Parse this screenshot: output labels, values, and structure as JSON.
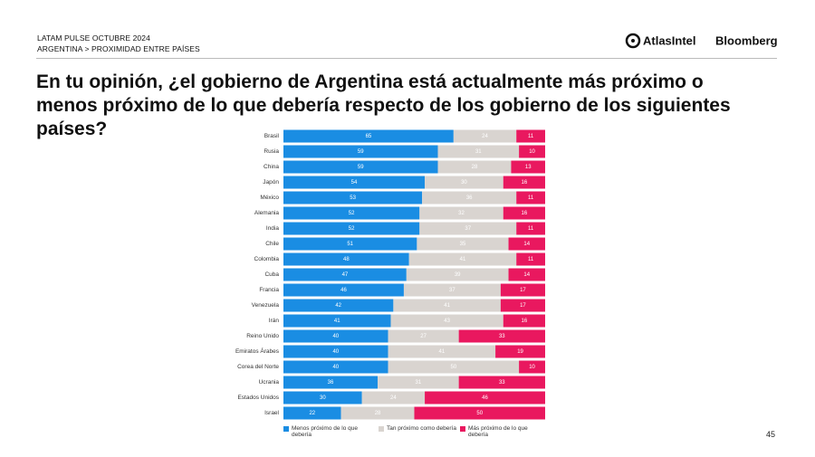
{
  "header": {
    "survey": "LATAM PULSE OCTUBRE 2024",
    "section": "ARGENTINA > PROXIMIDAD ENTRE PAÍSES",
    "logos": [
      "AtlasIntel",
      "Bloomberg"
    ]
  },
  "page_number": "45",
  "chart_data": {
    "type": "bar",
    "orientation": "horizontal",
    "stacked": true,
    "title": "En tu opinión, ¿el gobierno de Argentina está actualmente más próximo o menos próximo de lo que debería respecto de los gobierno de los siguientes países?",
    "categories": [
      "Brasil",
      "Rusia",
      "China",
      "Japón",
      "México",
      "Alemania",
      "India",
      "Chile",
      "Colombia",
      "Cuba",
      "Francia",
      "Venezuela",
      "Irán",
      "Reino Unido",
      "Emiratos Árabes",
      "Corea del Norte",
      "Ucrania",
      "Estados Unidos",
      "Israel"
    ],
    "series": [
      {
        "name": "Menos próximo de lo que debería",
        "color": "#1a8de3",
        "values": [
          65,
          59,
          59,
          54,
          53,
          52,
          52,
          51,
          48,
          47,
          46,
          42,
          41,
          40,
          40,
          40,
          36,
          30,
          22
        ]
      },
      {
        "name": "Tan próximo como debería",
        "color": "#d9d4d0",
        "values": [
          24,
          31,
          28,
          30,
          36,
          32,
          37,
          35,
          41,
          39,
          37,
          41,
          43,
          27,
          41,
          50,
          31,
          24,
          28
        ]
      },
      {
        "name": "Más próximo de lo que debería",
        "color": "#e9185f",
        "values": [
          11,
          10,
          13,
          16,
          11,
          16,
          11,
          14,
          11,
          14,
          17,
          17,
          16,
          33,
          19,
          10,
          33,
          46,
          50
        ]
      }
    ],
    "xlim": [
      0,
      100
    ]
  }
}
